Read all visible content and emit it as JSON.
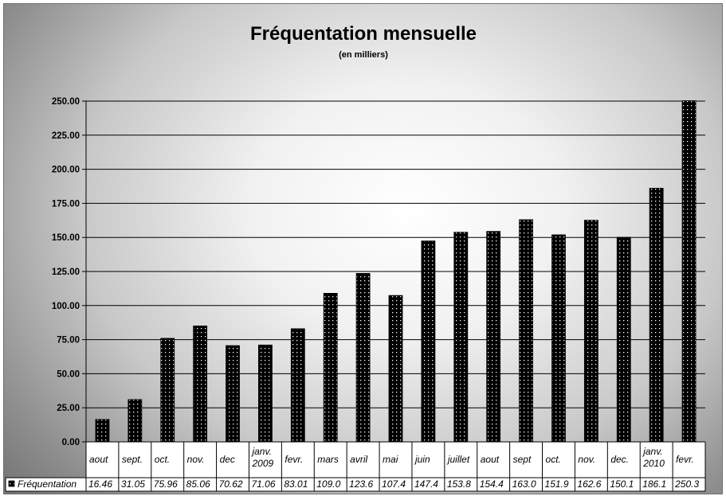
{
  "chart_data": {
    "type": "bar",
    "title": "Fréquentation mensuelle",
    "subtitle": "(en milliers)",
    "categories": [
      [
        "aout"
      ],
      [
        "sept."
      ],
      [
        "oct."
      ],
      [
        "nov."
      ],
      [
        "dec"
      ],
      [
        "janv.",
        "2009"
      ],
      [
        "fevr."
      ],
      [
        "mars"
      ],
      [
        "avril"
      ],
      [
        "mai"
      ],
      [
        "juin"
      ],
      [
        "juillet"
      ],
      [
        "aout"
      ],
      [
        "sept"
      ],
      [
        "oct."
      ],
      [
        "nov."
      ],
      [
        "dec."
      ],
      [
        "janv.",
        "2010"
      ],
      [
        "fevr."
      ]
    ],
    "series": [
      {
        "name": "Fréquentation",
        "values": [
          16.46,
          31.05,
          75.96,
          85.06,
          70.62,
          71.06,
          83.01,
          109.0,
          123.6,
          107.4,
          147.4,
          153.8,
          154.4,
          163.0,
          151.9,
          162.6,
          150.1,
          186.1,
          250.3
        ],
        "value_labels": [
          "16.46",
          "31.05",
          "75.96",
          "85.06",
          "70.62",
          "71.06",
          "83.01",
          "109.0",
          "123.6",
          "107.4",
          "147.4",
          "153.8",
          "154.4",
          "163.0",
          "151.9",
          "162.6",
          "150.1",
          "186.1",
          "250.3"
        ]
      }
    ],
    "ylim": [
      0,
      250
    ],
    "yticks": [
      "0.00",
      "25.00",
      "50.00",
      "75.00",
      "100.00",
      "125.00",
      "150.00",
      "175.00",
      "200.00",
      "225.00",
      "250.00"
    ],
    "grid": true,
    "legend_position": "data-table-left",
    "bar_pattern": "black-with-white-dots",
    "colors": {
      "bar": "#000000",
      "bar_dots": "#ffffff",
      "grid": "#000000"
    }
  }
}
